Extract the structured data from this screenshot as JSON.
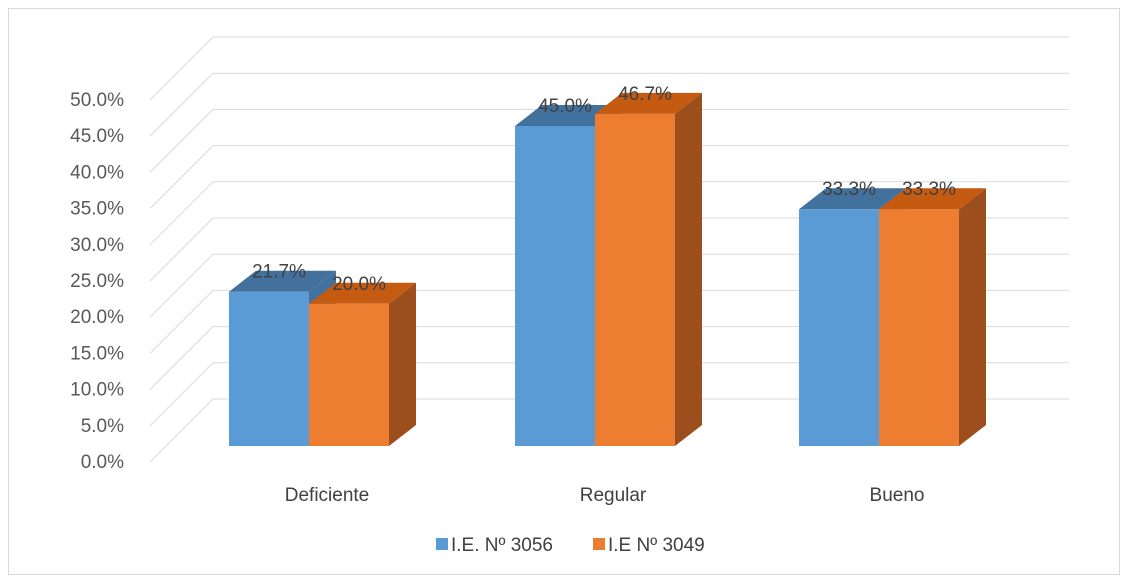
{
  "chart_data": {
    "type": "bar",
    "title": "",
    "xlabel": "",
    "ylabel": "",
    "ylim": [
      0,
      50
    ],
    "y_tick_labels": [
      "0.0%",
      "5.0%",
      "10.0%",
      "15.0%",
      "20.0%",
      "25.0%",
      "30.0%",
      "35.0%",
      "40.0%",
      "45.0%",
      "50.0%"
    ],
    "categories": [
      "Deficiente",
      "Regular",
      "Bueno"
    ],
    "series": [
      {
        "name": "I.E. Nº 3056",
        "values": [
          21.7,
          45.0,
          33.3
        ],
        "labels": [
          "21.7%",
          "45.0%",
          "33.3%"
        ],
        "color": "#5b9bd5",
        "top_color": "#41719c"
      },
      {
        "name": "I.E Nº 3049",
        "values": [
          20.0,
          46.7,
          33.3
        ],
        "labels": [
          "20.0%",
          "46.7%",
          "33.3%"
        ],
        "color": "#ed7d31",
        "side_color": "#9c4e1c",
        "top_color": "#c55a11"
      }
    ],
    "grid": true,
    "legend_position": "bottom"
  }
}
